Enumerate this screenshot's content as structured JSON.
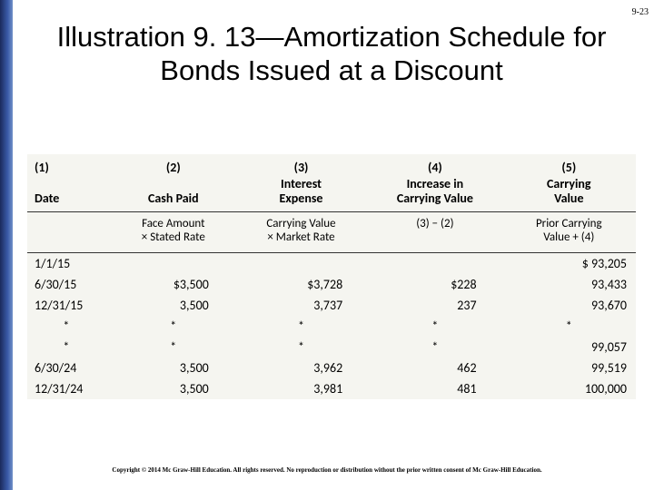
{
  "page_number": "9-23",
  "title": "Illustration 9. 13—Amortization Schedule for Bonds Issued at a Discount",
  "table": {
    "header_nums": [
      "(1)",
      "(2)",
      "(3)",
      "(4)",
      "(5)"
    ],
    "header_labels": [
      "Date",
      "Cash Paid",
      "Interest\nExpense",
      "Increase in\nCarrying Value",
      "Carrying\nValue"
    ],
    "header_formulas": [
      "",
      "Face Amount\n× Stated Rate",
      "Carrying Value\n× Market Rate",
      "(3) − (2)",
      "Prior Carrying\nValue + (4)"
    ],
    "rows": [
      {
        "date": "1/1/15",
        "c2": "",
        "c3": "",
        "c4": "",
        "c5": "$  93,205"
      },
      {
        "date": "6/30/15",
        "c2": "$3,500",
        "c3": "$3,728",
        "c4": "$228",
        "c5": "93,433"
      },
      {
        "date": "12/31/15",
        "c2": "3,500",
        "c3": "3,737",
        "c4": "237",
        "c5": "93,670"
      },
      {
        "date": "*",
        "c2": "*",
        "c3": "*",
        "c4": "*",
        "c5": "*",
        "star": true
      },
      {
        "date": "*",
        "c2": "*",
        "c3": "*",
        "c4": "*",
        "c5": "99,057",
        "datestar": true
      },
      {
        "date": "6/30/24",
        "c2": "3,500",
        "c3": "3,962",
        "c4": "462",
        "c5": "99,519"
      },
      {
        "date": "12/31/24",
        "c2": "3,500",
        "c3": "3,981",
        "c4": "481",
        "c5": "100,000"
      }
    ]
  },
  "copyright": "Copyright © 2014 Mc Graw-Hill Education. All rights reserved. No reproduction or distribution without the prior written consent of Mc Graw-Hill Education."
}
